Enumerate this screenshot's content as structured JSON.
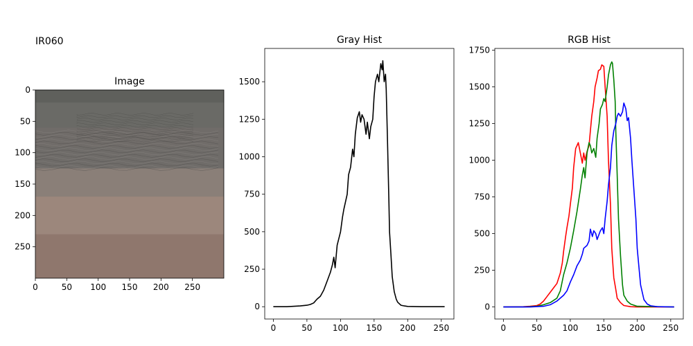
{
  "figure": {
    "suptitle": "IR060"
  },
  "colors": {
    "gray_line": "#000000",
    "red": "#ff0000",
    "green": "#008000",
    "blue": "#0000ff"
  },
  "chart_data": [
    {
      "type": "image",
      "title": "Image",
      "image_size": [
        300,
        300
      ],
      "xlim": [
        0,
        300
      ],
      "ylim": [
        300,
        0
      ],
      "xticks": [
        0,
        50,
        100,
        150,
        200,
        250
      ],
      "yticks": [
        0,
        50,
        100,
        150,
        200,
        250
      ],
      "bands": [
        {
          "y_from": 0,
          "y_to": 20,
          "color": "#5f605c"
        },
        {
          "y_from": 20,
          "y_to": 60,
          "color": "#6a6a66"
        },
        {
          "y_from": 60,
          "y_to": 90,
          "color": "#706c69"
        },
        {
          "y_from": 90,
          "y_to": 125,
          "color": "#6f6c69"
        },
        {
          "y_from": 125,
          "y_to": 170,
          "color": "#8a7f78"
        },
        {
          "y_from": 170,
          "y_to": 230,
          "color": "#9c877c"
        },
        {
          "y_from": 230,
          "y_to": 300,
          "color": "#8f776d"
        }
      ]
    },
    {
      "type": "line",
      "title": "Gray Hist",
      "xlim": [
        -12.8,
        268.8
      ],
      "ylim": [
        -82,
        1722
      ],
      "xticks": [
        0,
        50,
        100,
        150,
        200,
        250
      ],
      "yticks": [
        0,
        250,
        500,
        750,
        1000,
        1250,
        1500
      ],
      "series": [
        {
          "color": "#000000",
          "x": [
            0,
            20,
            40,
            50,
            55,
            60,
            65,
            70,
            75,
            80,
            85,
            88,
            90,
            92,
            95,
            100,
            103,
            105,
            110,
            112,
            115,
            118,
            120,
            122,
            125,
            128,
            130,
            132,
            135,
            138,
            140,
            143,
            145,
            148,
            150,
            152,
            155,
            157,
            160,
            162,
            163,
            165,
            167,
            168,
            170,
            172,
            173,
            175,
            177,
            180,
            183,
            185,
            190,
            195,
            200,
            220,
            255
          ],
          "y": [
            0,
            0,
            5,
            10,
            15,
            25,
            50,
            70,
            110,
            170,
            230,
            280,
            330,
            260,
            410,
            500,
            600,
            650,
            750,
            880,
            930,
            1050,
            1000,
            1150,
            1260,
            1300,
            1230,
            1280,
            1250,
            1150,
            1230,
            1120,
            1200,
            1250,
            1400,
            1500,
            1550,
            1500,
            1620,
            1580,
            1640,
            1500,
            1550,
            1450,
            1100,
            700,
            500,
            350,
            200,
            100,
            50,
            30,
            10,
            5,
            2,
            0,
            0
          ]
        }
      ]
    },
    {
      "type": "line",
      "title": "RGB Hist",
      "xlim": [
        -12.8,
        268.8
      ],
      "ylim": [
        -82,
        1762
      ],
      "xticks": [
        0,
        50,
        100,
        150,
        200,
        250
      ],
      "yticks": [
        0,
        250,
        500,
        750,
        1000,
        1250,
        1500,
        1750
      ],
      "series": [
        {
          "color": "#ff0000",
          "x": [
            0,
            30,
            40,
            50,
            55,
            60,
            65,
            70,
            75,
            80,
            85,
            88,
            90,
            93,
            95,
            98,
            100,
            103,
            105,
            108,
            110,
            112,
            115,
            118,
            120,
            122,
            125,
            128,
            130,
            132,
            135,
            137,
            140,
            142,
            145,
            147,
            150,
            152,
            155,
            157,
            160,
            162,
            165,
            168,
            170,
            175,
            180,
            190,
            200,
            255
          ],
          "y": [
            0,
            2,
            5,
            10,
            20,
            40,
            70,
            100,
            130,
            160,
            230,
            300,
            380,
            480,
            540,
            620,
            700,
            810,
            950,
            1080,
            1100,
            1120,
            1050,
            980,
            1050,
            1000,
            1060,
            1100,
            1200,
            1300,
            1400,
            1500,
            1560,
            1610,
            1620,
            1650,
            1640,
            1500,
            1300,
            1000,
            700,
            400,
            200,
            120,
            60,
            30,
            10,
            2,
            0,
            0
          ]
        },
        {
          "color": "#008000",
          "x": [
            0,
            30,
            50,
            60,
            70,
            80,
            85,
            90,
            95,
            100,
            105,
            110,
            115,
            118,
            120,
            122,
            125,
            128,
            130,
            132,
            135,
            138,
            140,
            143,
            145,
            148,
            150,
            152,
            155,
            157,
            160,
            162,
            163,
            165,
            167,
            168,
            170,
            172,
            175,
            178,
            180,
            185,
            190,
            200,
            255
          ],
          "y": [
            0,
            0,
            5,
            15,
            30,
            60,
            110,
            220,
            300,
            400,
            520,
            650,
            800,
            900,
            950,
            880,
            1050,
            1120,
            1100,
            1050,
            1080,
            1020,
            1150,
            1250,
            1350,
            1380,
            1420,
            1400,
            1500,
            1580,
            1650,
            1670,
            1660,
            1550,
            1400,
            1200,
            900,
            600,
            350,
            150,
            80,
            40,
            20,
            5,
            0
          ]
        },
        {
          "color": "#0000ff",
          "x": [
            0,
            40,
            60,
            70,
            80,
            90,
            95,
            100,
            105,
            110,
            115,
            118,
            120,
            125,
            128,
            130,
            133,
            135,
            138,
            140,
            145,
            148,
            150,
            152,
            155,
            157,
            160,
            162,
            165,
            168,
            170,
            172,
            175,
            178,
            180,
            183,
            185,
            187,
            190,
            192,
            195,
            198,
            200,
            203,
            205,
            210,
            215,
            220,
            230,
            255
          ],
          "y": [
            0,
            0,
            5,
            15,
            40,
            80,
            110,
            170,
            220,
            280,
            320,
            360,
            400,
            420,
            450,
            530,
            480,
            520,
            500,
            460,
            520,
            540,
            500,
            600,
            720,
            830,
            950,
            1100,
            1200,
            1250,
            1300,
            1320,
            1300,
            1330,
            1390,
            1350,
            1270,
            1290,
            1150,
            1000,
            800,
            600,
            400,
            250,
            150,
            50,
            20,
            8,
            2,
            0
          ]
        }
      ]
    }
  ]
}
